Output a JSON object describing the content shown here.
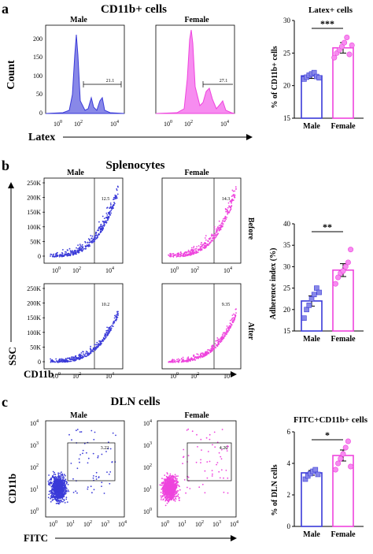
{
  "panel_labels": {
    "a": "a",
    "b": "b",
    "c": "c"
  },
  "section_a": {
    "title": "CD11b+ cells",
    "male_label": "Male",
    "female_label": "Female",
    "y_label": "Count",
    "x_label": "Latex",
    "y_ticks": [
      "0",
      "50",
      "100",
      "150",
      "200"
    ],
    "x_ticks": [
      "0",
      "2",
      "4"
    ],
    "tick_base": "10",
    "gate_male": "21.1",
    "gate_female": "27.1"
  },
  "section_b": {
    "title": "Splenocytes",
    "male_label": "Male",
    "female_label": "Female",
    "y_label": "SSC",
    "x_label": "CD11b",
    "y_ticks": [
      "0",
      "50K",
      "100K",
      "150K",
      "200K",
      "250K"
    ],
    "x_ticks": [
      "0",
      "2",
      "4"
    ],
    "tick_base": "10",
    "before_label": "Before",
    "after_label": "After",
    "gate_before_male": "12.5",
    "gate_before_female": "14.3",
    "gate_after_male": "10.2",
    "gate_after_female": "9.35"
  },
  "section_c": {
    "title": "DLN cells",
    "male_label": "Male",
    "female_label": "Female",
    "y_label": "CD11b",
    "x_label": "FITC",
    "y_ticks": [
      "0",
      "1",
      "2",
      "3",
      "4"
    ],
    "x_ticks": [
      "0",
      "1",
      "2",
      "3",
      "4"
    ],
    "tick_base": "10",
    "gate_male": "3.22",
    "gate_female": "4.20"
  },
  "colors": {
    "male": "#3a3ad8",
    "female": "#ee44dd",
    "male_fill": "#8888e8",
    "female_fill": "#f78cf0"
  },
  "chart_data": [
    {
      "type": "bar",
      "title": "Latex+ cells",
      "ylabel": "% of CD11b+ cells",
      "categories": [
        "Male",
        "Female"
      ],
      "values": [
        21.5,
        25.8
      ],
      "error": [
        0.4,
        0.8
      ],
      "points": [
        [
          21.0,
          21.3,
          21.6,
          21.8,
          22.0,
          21.4,
          21.2
        ],
        [
          24.3,
          25.0,
          25.5,
          26.0,
          26.6,
          27.4,
          24.8,
          26.2
        ]
      ],
      "ylim": [
        15,
        30
      ],
      "y_ticks": [
        "15",
        "20",
        "25",
        "30"
      ],
      "significance": "***"
    },
    {
      "type": "bar",
      "title": "",
      "ylabel": "Adherence index (%)",
      "categories": [
        "Male",
        "Female"
      ],
      "values": [
        22.0,
        29.2
      ],
      "error": [
        1.2,
        1.5
      ],
      "points": [
        [
          18.0,
          20.0,
          21.0,
          22.5,
          23.5,
          25.0,
          24.0
        ],
        [
          26.0,
          27.5,
          28.5,
          29.0,
          30.0,
          31.0,
          34.0
        ]
      ],
      "ylim": [
        15,
        40
      ],
      "y_ticks": [
        "15",
        "20",
        "25",
        "30",
        "35",
        "40"
      ],
      "significance": "**"
    },
    {
      "type": "bar",
      "title": "FITC+CD11b+ cells",
      "ylabel": "% of DLN cells",
      "categories": [
        "Male",
        "Female"
      ],
      "values": [
        3.4,
        4.5
      ],
      "error": [
        0.15,
        0.35
      ],
      "points": [
        [
          3.0,
          3.2,
          3.35,
          3.5,
          3.6,
          3.3
        ],
        [
          3.6,
          4.0,
          4.3,
          4.6,
          5.0,
          5.4,
          3.8
        ]
      ],
      "ylim": [
        0,
        6
      ],
      "y_ticks": [
        "0",
        "2",
        "4",
        "6"
      ],
      "significance": "*"
    }
  ]
}
